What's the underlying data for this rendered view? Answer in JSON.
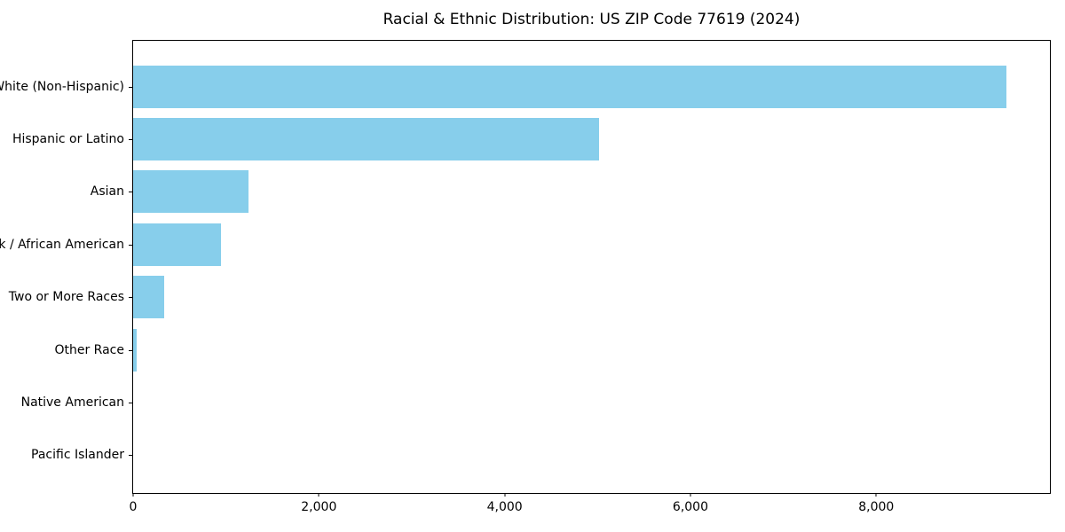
{
  "chart_data": {
    "type": "bar",
    "orientation": "horizontal",
    "title": "Racial & Ethnic Distribution: US ZIP Code 77619 (2024)",
    "categories": [
      "White (Non-Hispanic)",
      "Hispanic or Latino",
      "Asian",
      "Black / African American",
      "Two or More Races",
      "Other Race",
      "Native American",
      "Pacific Islander"
    ],
    "values": [
      9400,
      5020,
      1240,
      950,
      330,
      40,
      0,
      0
    ],
    "xlabel": "",
    "ylabel": "",
    "xlim": [
      0,
      9870
    ],
    "xticks": [
      0,
      2000,
      4000,
      6000,
      8000
    ],
    "xtick_labels": [
      "0",
      "2,000",
      "4,000",
      "6,000",
      "8,000"
    ],
    "bar_color": "#87CEEB",
    "background_color": "#ffffff",
    "frame_color": "#000000",
    "grid": false,
    "legend_position": "none"
  }
}
